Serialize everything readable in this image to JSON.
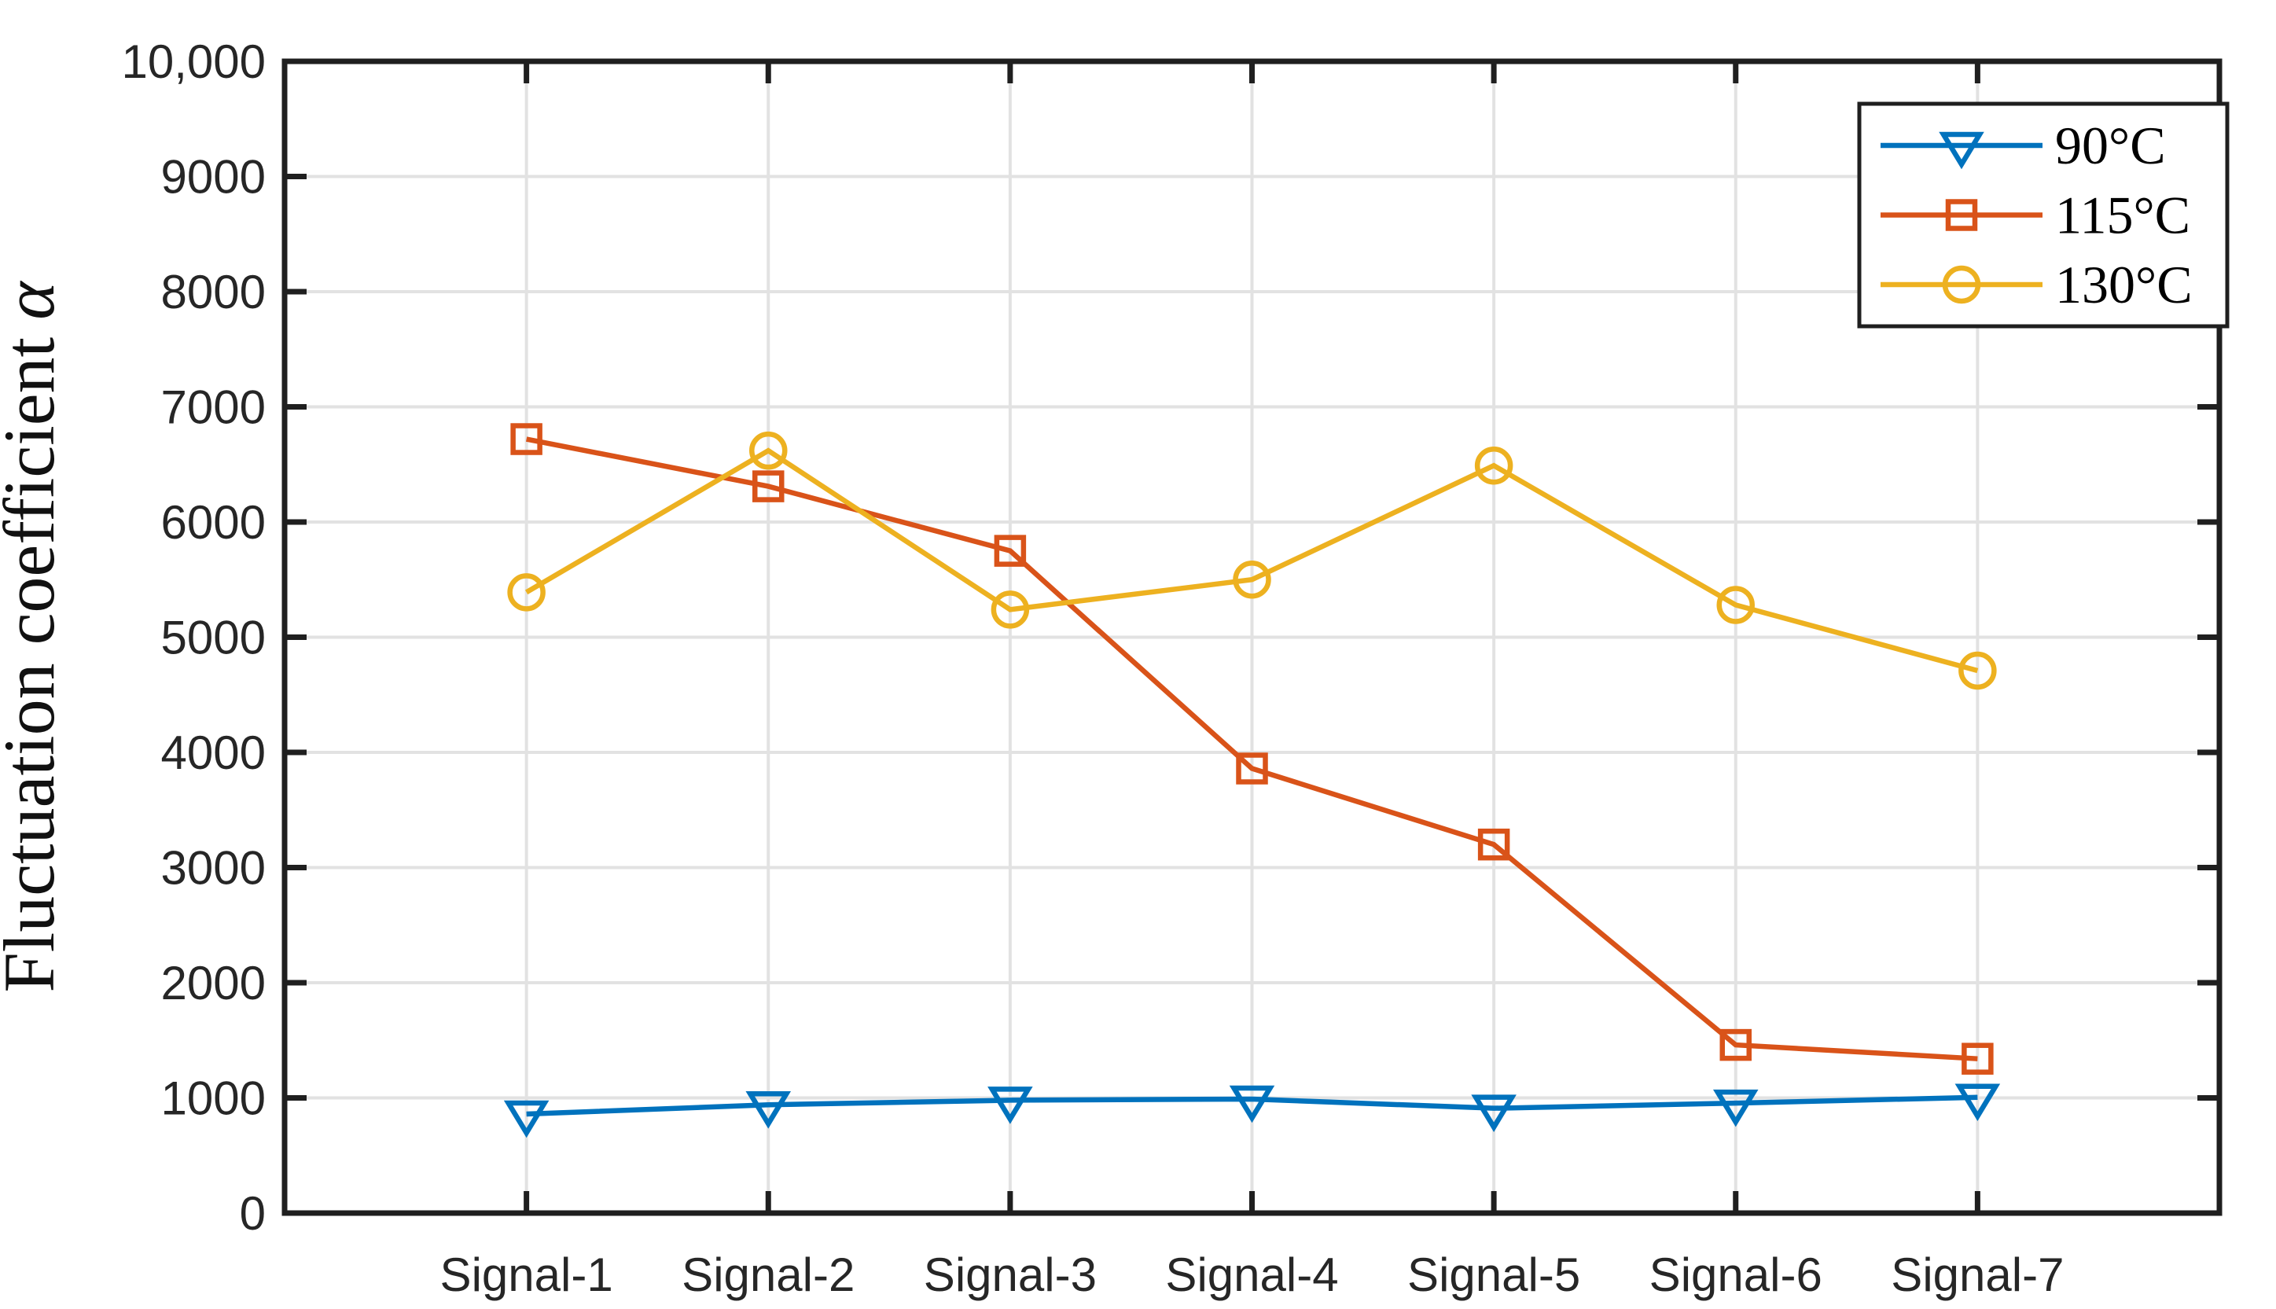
{
  "figure": {
    "background": "#FFFFFF",
    "axis_color": "#1F1F1F",
    "tick_label_color": "#262626",
    "grid_color": "#E2E2E2"
  },
  "chart_data": {
    "type": "line",
    "title": "",
    "xlabel": "",
    "ylabel": "Fluctuation coefficient",
    "ylabel_symbol": "α",
    "categories": [
      "Signal-1",
      "Signal-2",
      "Signal-3",
      "Signal-4",
      "Signal-5",
      "Signal-6",
      "Signal-7"
    ],
    "ylim": [
      0,
      10000
    ],
    "y_tick_interval": 1000,
    "y_ticks": [
      "0",
      "1000",
      "2000",
      "3000",
      "4000",
      "5000",
      "6000",
      "7000",
      "8000",
      "9000",
      "10,000"
    ],
    "grid": true,
    "legend_position": "top-right",
    "series": [
      {
        "name": "90°C",
        "marker": "triangle-down",
        "color": "#0072BD",
        "values": [
          860,
          940,
          980,
          990,
          910,
          955,
          1005
        ]
      },
      {
        "name": "115°C",
        "marker": "square",
        "color": "#D95319",
        "values": [
          6720,
          6310,
          5750,
          3860,
          3200,
          1460,
          1340
        ]
      },
      {
        "name": "130°C",
        "marker": "circle",
        "color": "#EDB120",
        "values": [
          5390,
          6620,
          5240,
          5500,
          6490,
          5280,
          4710
        ]
      }
    ]
  }
}
